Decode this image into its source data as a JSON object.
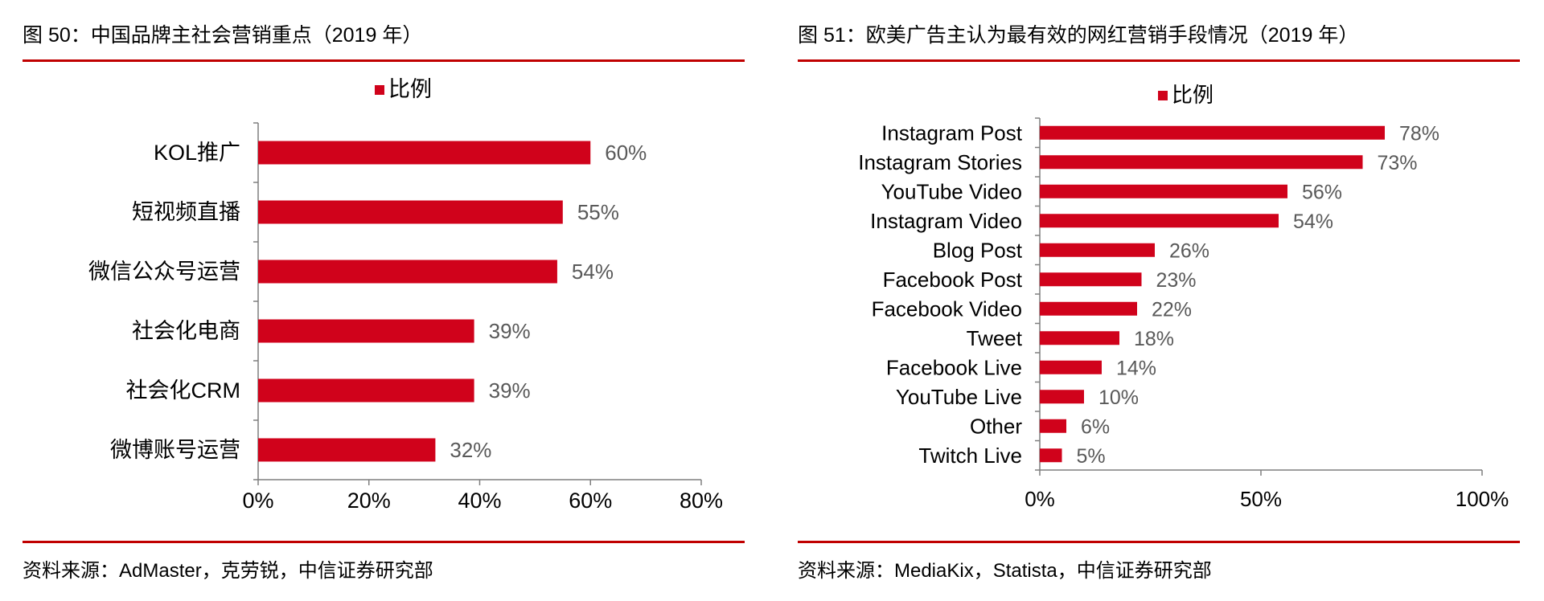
{
  "colors": {
    "bar": "#d0021b",
    "rule": "#c00000",
    "axis": "#7f7f7f",
    "value_label": "#595959"
  },
  "chart_data": [
    {
      "type": "bar",
      "orientation": "horizontal",
      "title": "图 50：中国品牌主社会营销重点（2019 年）",
      "source": "资料来源：AdMaster，克劳锐，中信证券研究部",
      "legend": {
        "label": "比例",
        "position": "top"
      },
      "categories": [
        "KOL推广",
        "短视频直播",
        "微信公众号运营",
        "社会化电商",
        "社会化CRM",
        "微博账号运营"
      ],
      "series": [
        {
          "name": "比例",
          "values": [
            60,
            55,
            54,
            39,
            39,
            32
          ]
        }
      ],
      "data_labels": [
        "60%",
        "55%",
        "54%",
        "39%",
        "39%",
        "32%"
      ],
      "xlim": [
        0,
        80
      ],
      "xticks": [
        0,
        20,
        40,
        60,
        80
      ],
      "xtick_labels": [
        "0%",
        "20%",
        "40%",
        "60%",
        "80%"
      ],
      "grid": false
    },
    {
      "type": "bar",
      "orientation": "horizontal",
      "title": "图 51：欧美广告主认为最有效的网红营销手段情况（2019 年）",
      "source": "资料来源：MediaKix，Statista，中信证券研究部",
      "legend": {
        "label": "比例",
        "position": "top"
      },
      "categories": [
        "Instagram Post",
        "Instagram Stories",
        "YouTube Video",
        "Instagram Video",
        "Blog Post",
        "Facebook Post",
        "Facebook Video",
        "Tweet",
        "Facebook Live",
        "YouTube Live",
        "Other",
        "Twitch Live"
      ],
      "series": [
        {
          "name": "比例",
          "values": [
            78,
            73,
            56,
            54,
            26,
            23,
            22,
            18,
            14,
            10,
            6,
            5
          ]
        }
      ],
      "data_labels": [
        "78%",
        "73%",
        "56%",
        "54%",
        "26%",
        "23%",
        "22%",
        "18%",
        "14%",
        "10%",
        "6%",
        "5%"
      ],
      "xlim": [
        0,
        100
      ],
      "xticks": [
        0,
        50,
        100
      ],
      "xtick_labels": [
        "0%",
        "50%",
        "100%"
      ],
      "grid": false
    }
  ]
}
